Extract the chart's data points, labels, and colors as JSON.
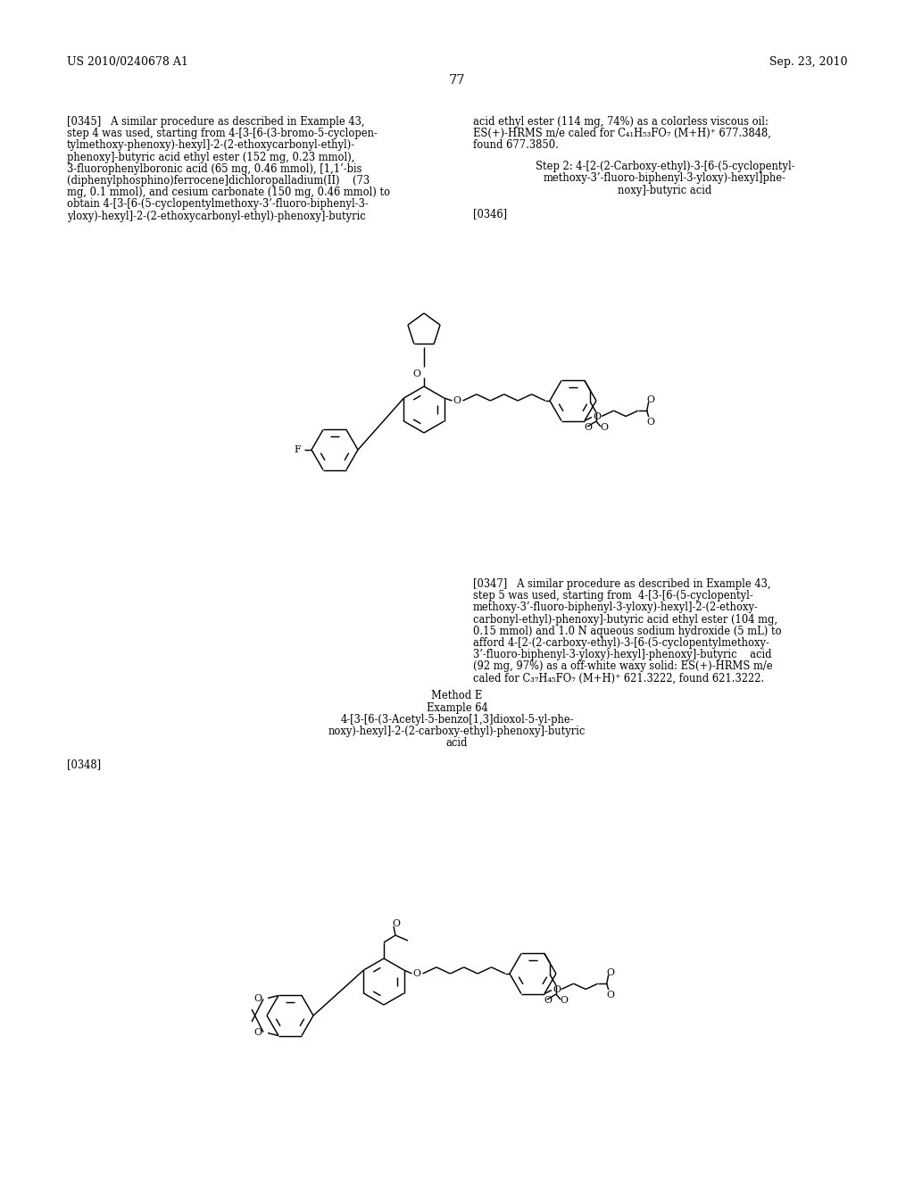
{
  "background": "#ffffff",
  "header_left": "US 2010/0240678 A1",
  "header_right": "Sep. 23, 2010",
  "page_num": "77",
  "p345_left": [
    "[0345]   A similar procedure as described in Example 43,",
    "step 4 was used, starting from 4-[3-[6-(3-bromo-5-cyclopen-",
    "tylmethoxy-phenoxy)-hexyl]-2-(2-ethoxycarbonyl-ethyl)-",
    "phenoxy]-butyric acid ethyl ester (152 mg, 0.23 mmol),",
    "3-fluorophenylboronic acid (65 mg, 0.46 mmol), [1,1’-bis",
    "(diphenylphosphino)ferrocene]dichloropalladium(II)    (73",
    "mg, 0.1 mmol), and cesium carbonate (150 mg, 0.46 mmol) to",
    "obtain 4-[3-[6-(5-cyclopentylmethoxy-3’-fluoro-biphenyl-3-",
    "yloxy)-hexyl]-2-(2-ethoxycarbonyl-ethyl)-phenoxy]-butyric"
  ],
  "p345_right": [
    "acid ethyl ester (114 mg, 74%) as a colorless viscous oil:",
    "ES(+)-HRMS m/e caled for C₄₁H₅₃FO₇ (M+H)⁺ 677.3848,",
    "found 677.3850."
  ],
  "step2_lines": [
    "Step 2: 4-[2-(2-Carboxy-ethyl)-3-[6-(5-cyclopentyl-",
    "methoxy-3’-fluoro-biphenyl-3-yloxy)-hexyl]phe-",
    "noxy]-butyric acid"
  ],
  "p347_lines": [
    "[0347]   A similar procedure as described in Example 43,",
    "step 5 was used, starting from  4-[3-[6-(5-cyclopentyl-",
    "methoxy-3’-fluoro-biphenyl-3-yloxy)-hexyl]-2-(2-ethoxy-",
    "carbonyl-ethyl)-phenoxy]-butyric acid ethyl ester (104 mg,",
    "0.15 mmol) and 1.0 N aqueous sodium hydroxide (5 mL) to",
    "afford 4-[2-(2-carboxy-ethyl)-3-[6-(5-cyclopentylmethoxy-",
    "3’-fluoro-biphenyl-3-yloxy)-hexyl]-phenoxy]-butyric    acid",
    "(92 mg, 97%) as a off-white waxy solid: ES(+)-HRMS m/e",
    "caled for C₃₇H₄₅FO₇ (M+H)⁺ 621.3222, found 621.3222."
  ],
  "method_e": "Method E",
  "example64": "Example 64",
  "ex64_lines": [
    "4-[3-[6-(3-Acetyl-5-benzo[1,3]dioxol-5-yl-phe-",
    "noxy)-hexyl]-2-(2-carboxy-ethyl)-phenoxy]-butyric",
    "acid"
  ],
  "p348": "[0348]",
  "p346": "[0346]"
}
